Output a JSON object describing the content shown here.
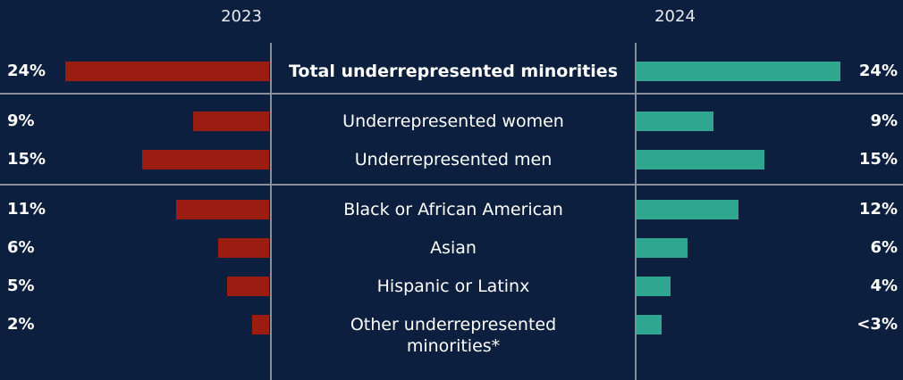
{
  "chart_data": {
    "type": "butterfly-bar",
    "categories": [
      "Total underrepresented minorities",
      "Underrepresented women",
      "Underrepresented men",
      "Black or African American",
      "Asian",
      "Hispanic or Latinx",
      "Other underrepresented minorities*"
    ],
    "series": [
      {
        "name": "2023",
        "color": "#9b1d12",
        "values": [
          24,
          9,
          15,
          11,
          6,
          5,
          2
        ],
        "value_labels": [
          "24%",
          "9%",
          "15%",
          "11%",
          "6%",
          "5%",
          "2%"
        ]
      },
      {
        "name": "2024",
        "color": "#2fa690",
        "values": [
          24,
          9,
          15,
          12,
          6,
          4,
          2.9
        ],
        "value_labels": [
          "24%",
          "9%",
          "15%",
          "12%",
          "6%",
          "4%",
          "<3%"
        ]
      }
    ]
  }
}
